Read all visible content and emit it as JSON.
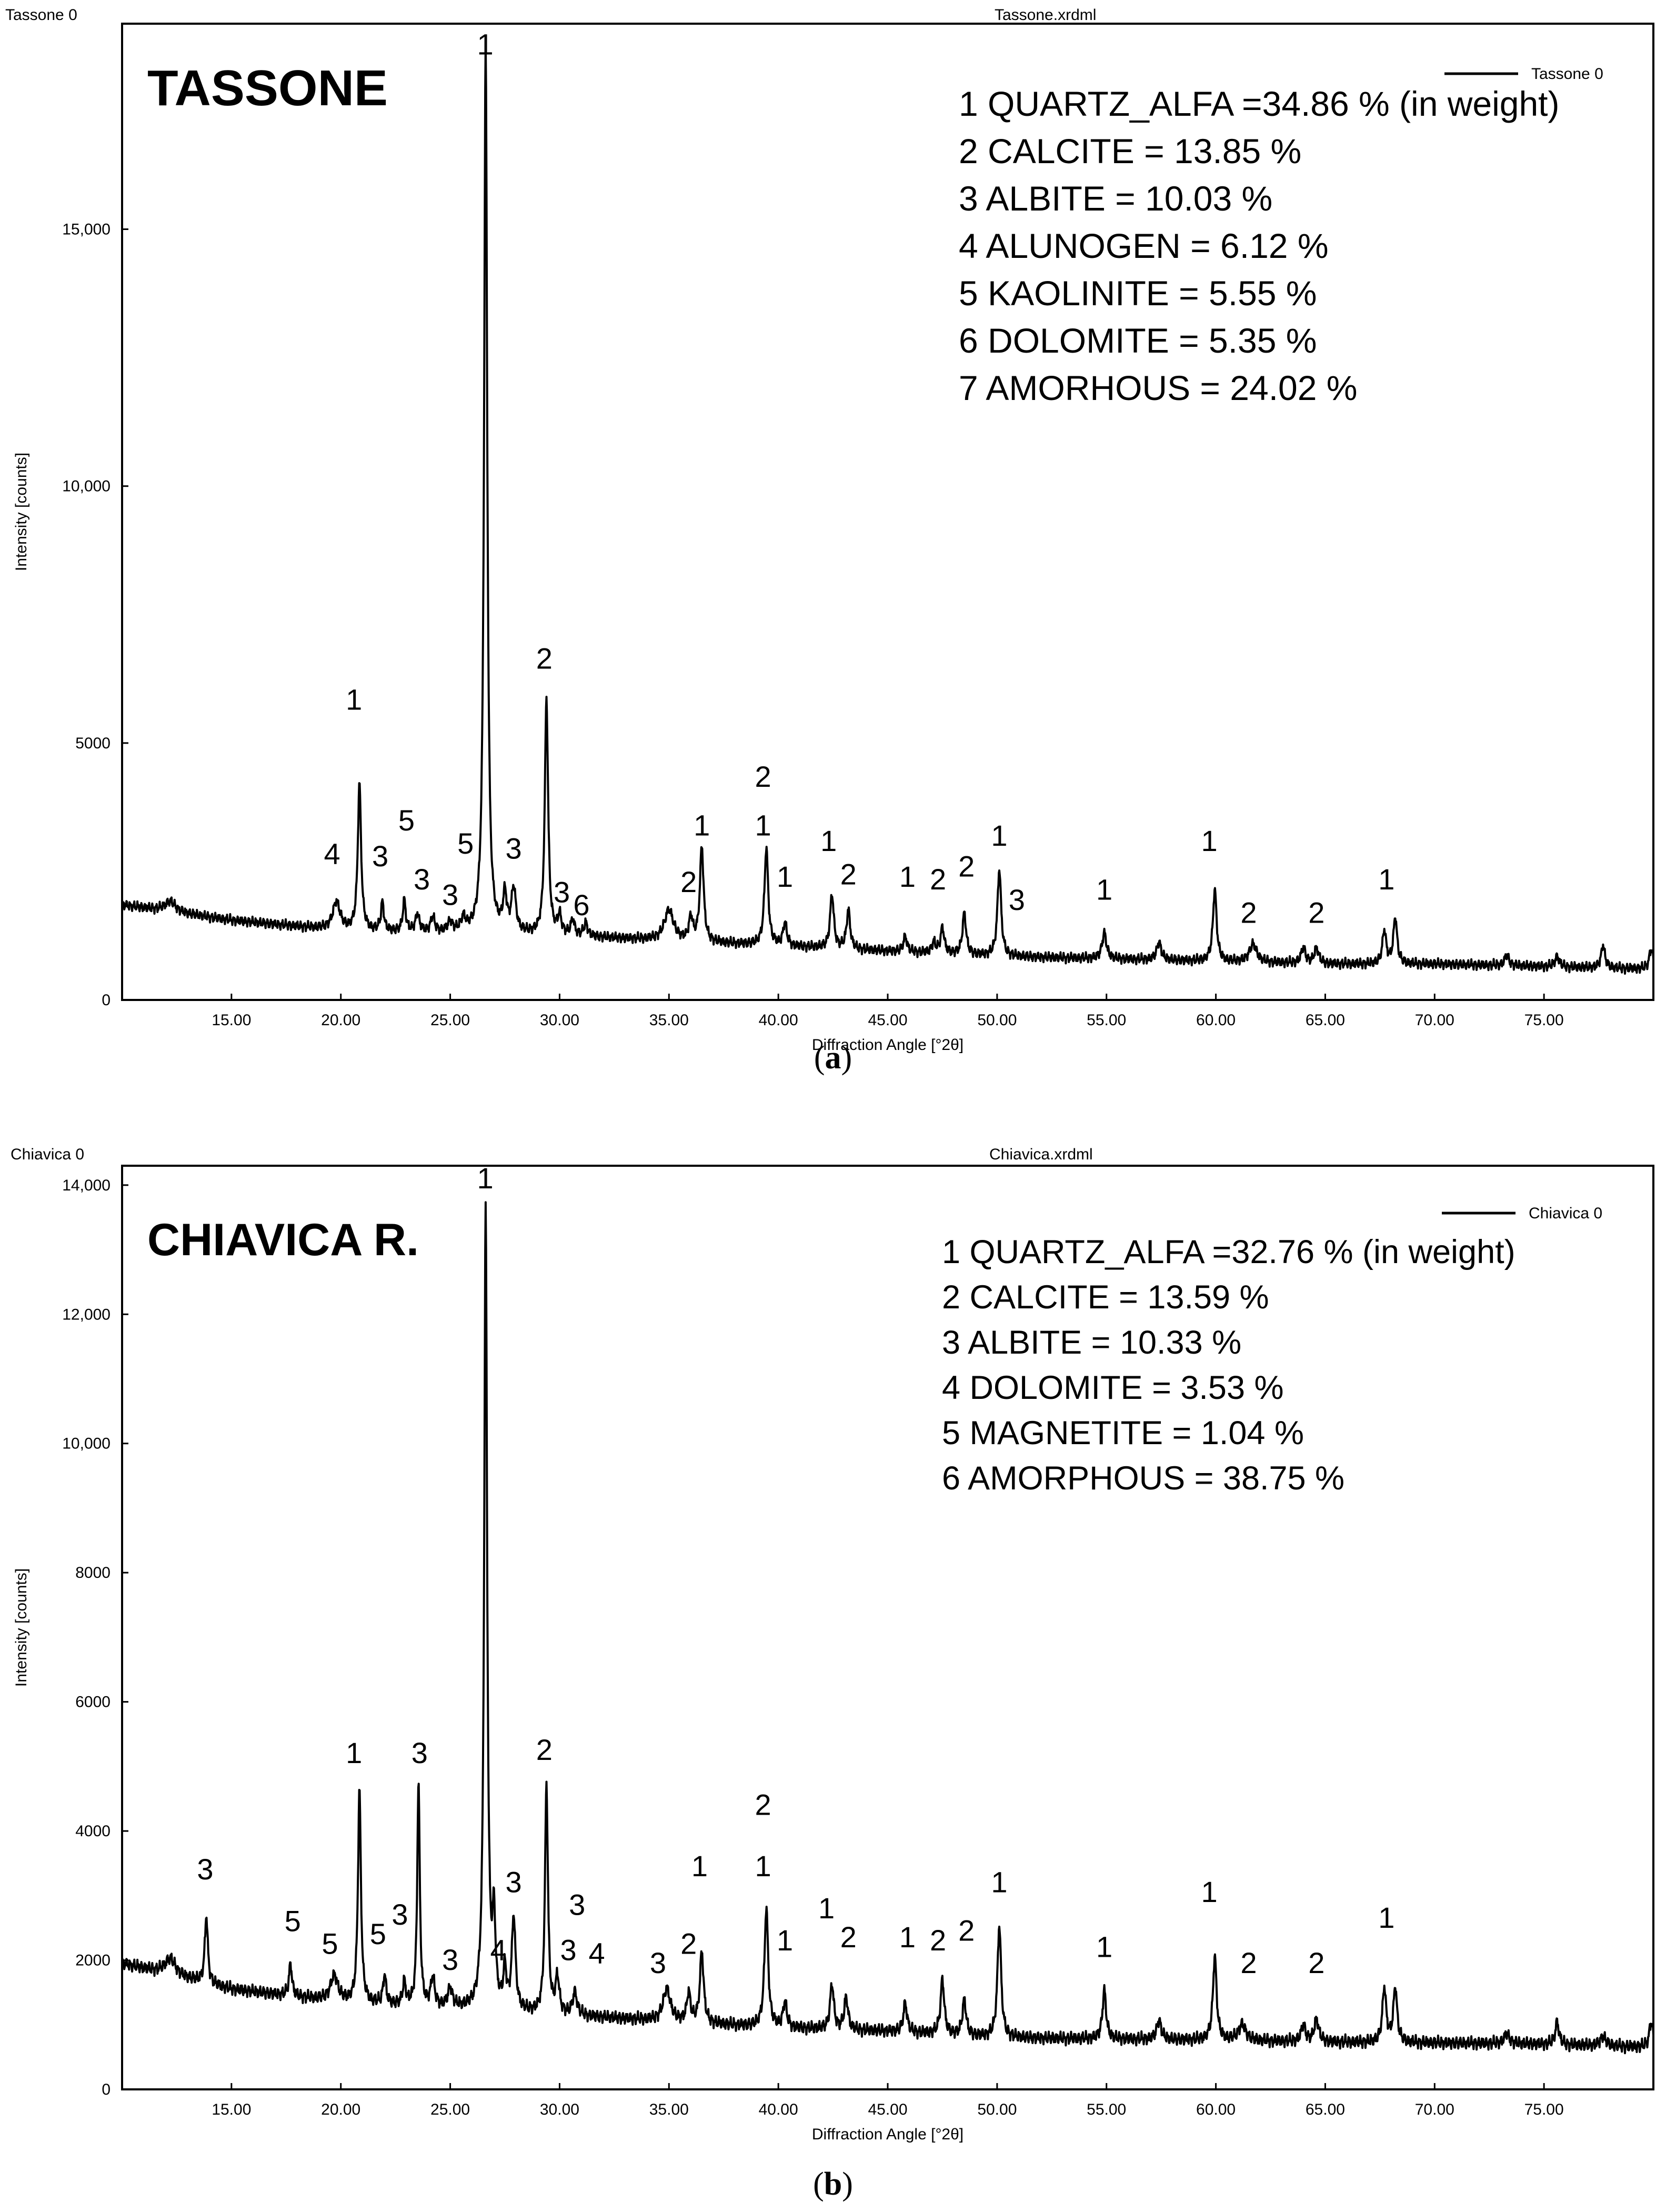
{
  "figure": {
    "caption_a_open": "(",
    "caption_a_letter": "a",
    "caption_a_close": ")",
    "caption_b_open": "(",
    "caption_b_letter": "b",
    "caption_b_close": ")"
  },
  "chart_data": [
    {
      "type": "line",
      "panel_id": "a",
      "sample_label": "Tassone 0",
      "file_name": "Tassone.xrdml",
      "title": "TASSONE",
      "legend": "Tassone 0",
      "xlabel": "Diffraction Angle [°2θ]",
      "ylabel": "Intensity [counts]",
      "xlim": [
        10,
        80
      ],
      "ylim": [
        0,
        19000
      ],
      "xticks": [
        15,
        20,
        25,
        30,
        35,
        40,
        45,
        50,
        55,
        60,
        65,
        70,
        75
      ],
      "xtick_labels": [
        "15.00",
        "20.00",
        "25.00",
        "30.00",
        "35.00",
        "40.00",
        "45.00",
        "50.00",
        "55.00",
        "60.00",
        "65.00",
        "70.00",
        "75.00"
      ],
      "yticks": [
        0,
        5000,
        10000,
        15000
      ],
      "ytick_labels": [
        "0",
        "5000",
        "10,000",
        "15,000"
      ],
      "composition": [
        "1 QUARTZ_ALFA =34.86 % (in weight)",
        "2 CALCITE = 13.85 %",
        "3 ALBITE = 10.03 %",
        "4 ALUNOGEN = 6.12 %",
        "5 KAOLINITE = 5.55 %",
        "6  DOLOMITE = 5.35 %",
        "7 AMORHOUS = 24.02 %"
      ],
      "baseline": [
        [
          10,
          1850
        ],
        [
          15,
          1550
        ],
        [
          20,
          1350
        ],
        [
          25,
          1300
        ],
        [
          30,
          1250
        ],
        [
          35,
          1150
        ],
        [
          40,
          1050
        ],
        [
          45,
          950
        ],
        [
          50,
          850
        ],
        [
          55,
          800
        ],
        [
          60,
          750
        ],
        [
          65,
          700
        ],
        [
          70,
          700
        ],
        [
          75,
          650
        ],
        [
          80,
          600
        ]
      ],
      "peaks": [
        [
          12.2,
          200,
          0.3
        ],
        [
          19.8,
          550,
          0.2
        ],
        [
          20.85,
          2850,
          0.09
        ],
        [
          21.9,
          550,
          0.08
        ],
        [
          22.9,
          600,
          0.08
        ],
        [
          23.5,
          350,
          0.1
        ],
        [
          24.2,
          300,
          0.1
        ],
        [
          25.0,
          200,
          0.12
        ],
        [
          25.6,
          250,
          0.12
        ],
        [
          26.62,
          17300,
          0.085
        ],
        [
          27.5,
          700,
          0.1
        ],
        [
          27.9,
          850,
          0.12
        ],
        [
          29.4,
          4600,
          0.09
        ],
        [
          30.0,
          350,
          0.1
        ],
        [
          30.6,
          300,
          0.1
        ],
        [
          31.2,
          250,
          0.1
        ],
        [
          35.0,
          600,
          0.25
        ],
        [
          36.0,
          450,
          0.1
        ],
        [
          36.5,
          1850,
          0.1
        ],
        [
          39.45,
          1900,
          0.1
        ],
        [
          40.3,
          450,
          0.1
        ],
        [
          42.45,
          1050,
          0.1
        ],
        [
          43.2,
          750,
          0.1
        ],
        [
          45.8,
          300,
          0.1
        ],
        [
          47.1,
          200,
          0.1
        ],
        [
          47.5,
          500,
          0.1
        ],
        [
          48.5,
          800,
          0.1
        ],
        [
          50.1,
          1700,
          0.1
        ],
        [
          54.9,
          500,
          0.12
        ],
        [
          57.4,
          350,
          0.12
        ],
        [
          59.95,
          1400,
          0.1
        ],
        [
          61.7,
          350,
          0.2
        ],
        [
          64.0,
          300,
          0.12
        ],
        [
          64.6,
          300,
          0.12
        ],
        [
          67.7,
          650,
          0.1
        ],
        [
          68.2,
          900,
          0.1
        ],
        [
          73.3,
          200,
          0.12
        ],
        [
          75.6,
          200,
          0.12
        ],
        [
          77.7,
          450,
          0.1
        ],
        [
          79.9,
          400,
          0.1
        ]
      ],
      "peak_labels": [
        {
          "x": 26.6,
          "y": 18400,
          "text": "1"
        },
        {
          "x": 20.6,
          "y": 5650,
          "text": "1"
        },
        {
          "x": 29.3,
          "y": 6450,
          "text": "2"
        },
        {
          "x": 19.6,
          "y": 2650,
          "text": "4"
        },
        {
          "x": 21.8,
          "y": 2600,
          "text": "3"
        },
        {
          "x": 23.0,
          "y": 3300,
          "text": "5"
        },
        {
          "x": 23.7,
          "y": 2150,
          "text": "3"
        },
        {
          "x": 25.0,
          "y": 1850,
          "text": "3"
        },
        {
          "x": 25.7,
          "y": 2850,
          "text": "5"
        },
        {
          "x": 27.9,
          "y": 2750,
          "text": "3"
        },
        {
          "x": 30.1,
          "y": 1900,
          "text": "3"
        },
        {
          "x": 31.0,
          "y": 1650,
          "text": "6"
        },
        {
          "x": 35.9,
          "y": 2100,
          "text": "2"
        },
        {
          "x": 36.5,
          "y": 3200,
          "text": "1"
        },
        {
          "x": 39.3,
          "y": 4150,
          "text": "2"
        },
        {
          "x": 39.3,
          "y": 3200,
          "text": "1"
        },
        {
          "x": 40.3,
          "y": 2200,
          "text": "1"
        },
        {
          "x": 42.3,
          "y": 2900,
          "text": "1"
        },
        {
          "x": 43.2,
          "y": 2250,
          "text": "2"
        },
        {
          "x": 45.9,
          "y": 2200,
          "text": "1"
        },
        {
          "x": 47.3,
          "y": 2150,
          "text": "2"
        },
        {
          "x": 48.6,
          "y": 2400,
          "text": "2"
        },
        {
          "x": 50.1,
          "y": 3000,
          "text": "1"
        },
        {
          "x": 50.9,
          "y": 1750,
          "text": "3"
        },
        {
          "x": 54.9,
          "y": 1950,
          "text": "1"
        },
        {
          "x": 59.7,
          "y": 2900,
          "text": "1"
        },
        {
          "x": 61.5,
          "y": 1500,
          "text": "2"
        },
        {
          "x": 64.6,
          "y": 1500,
          "text": "2"
        },
        {
          "x": 67.8,
          "y": 2150,
          "text": "1"
        }
      ]
    },
    {
      "type": "line",
      "panel_id": "b",
      "sample_label": "Chiavica 0",
      "file_name": "Chiavica.xrdml",
      "title": "CHIAVICA R.",
      "legend": "Chiavica 0",
      "xlabel": "Diffraction Angle [°2θ]",
      "ylabel": "Intensity [counts]",
      "xlim": [
        10,
        80
      ],
      "ylim": [
        0,
        14300
      ],
      "xticks": [
        15,
        20,
        25,
        30,
        35,
        40,
        45,
        50,
        55,
        60,
        65,
        70,
        75
      ],
      "xtick_labels": [
        "15.00",
        "20.00",
        "25.00",
        "30.00",
        "35.00",
        "40.00",
        "45.00",
        "50.00",
        "55.00",
        "60.00",
        "65.00",
        "70.00",
        "75.00"
      ],
      "yticks": [
        0,
        2000,
        4000,
        6000,
        8000,
        10000,
        12000,
        14000
      ],
      "ytick_labels": [
        "0",
        "2000",
        "4000",
        "6000",
        "8000",
        "10,000",
        "12,000",
        "14,000"
      ],
      "composition": [
        "1 QUARTZ_ALFA =32.76 % (in weight)",
        "2 CALCITE = 13.59 %",
        "3 ALBITE = 10.33 %",
        "4 DOLOMITE = 3.53 %",
        "5 MAGNETITE = 1.04 %",
        "6 AMORPHOUS = 38.75 %"
      ],
      "baseline": [
        [
          10,
          1950
        ],
        [
          15,
          1550
        ],
        [
          20,
          1350
        ],
        [
          25,
          1250
        ],
        [
          30,
          1150
        ],
        [
          35,
          1050
        ],
        [
          40,
          950
        ],
        [
          45,
          900
        ],
        [
          50,
          800
        ],
        [
          55,
          780
        ],
        [
          60,
          760
        ],
        [
          65,
          730
        ],
        [
          70,
          720
        ],
        [
          75,
          700
        ],
        [
          80,
          650
        ]
      ],
      "peaks": [
        [
          12.2,
          250,
          0.3
        ],
        [
          13.85,
          1050,
          0.08
        ],
        [
          17.7,
          500,
          0.08
        ],
        [
          19.7,
          400,
          0.2
        ],
        [
          20.85,
          3300,
          0.08
        ],
        [
          22.0,
          450,
          0.08
        ],
        [
          22.9,
          350,
          0.08
        ],
        [
          23.55,
          3450,
          0.07
        ],
        [
          24.2,
          450,
          0.1
        ],
        [
          25.0,
          300,
          0.12
        ],
        [
          26.62,
          12400,
          0.08
        ],
        [
          27.0,
          1300,
          0.08
        ],
        [
          27.5,
          600,
          0.08
        ],
        [
          27.9,
          1450,
          0.1
        ],
        [
          29.4,
          3550,
          0.08
        ],
        [
          29.9,
          550,
          0.1
        ],
        [
          30.7,
          350,
          0.12
        ],
        [
          34.9,
          500,
          0.2
        ],
        [
          35.9,
          450,
          0.1
        ],
        [
          36.5,
          1100,
          0.1
        ],
        [
          39.45,
          1850,
          0.1
        ],
        [
          40.3,
          400,
          0.1
        ],
        [
          42.45,
          700,
          0.1
        ],
        [
          43.1,
          500,
          0.1
        ],
        [
          45.8,
          450,
          0.1
        ],
        [
          47.5,
          850,
          0.1
        ],
        [
          48.5,
          550,
          0.1
        ],
        [
          50.1,
          1750,
          0.1
        ],
        [
          54.9,
          750,
          0.1
        ],
        [
          57.4,
          300,
          0.12
        ],
        [
          59.95,
          1300,
          0.1
        ],
        [
          61.2,
          250,
          0.2
        ],
        [
          64.0,
          250,
          0.12
        ],
        [
          64.6,
          350,
          0.12
        ],
        [
          67.7,
          850,
          0.1
        ],
        [
          68.2,
          850,
          0.1
        ],
        [
          73.3,
          150,
          0.15
        ],
        [
          75.6,
          350,
          0.1
        ],
        [
          77.7,
          150,
          0.15
        ],
        [
          79.9,
          400,
          0.1
        ]
      ],
      "peak_labels": [
        {
          "x": 26.6,
          "y": 13950,
          "text": "1"
        },
        {
          "x": 13.8,
          "y": 3250,
          "text": "3"
        },
        {
          "x": 17.8,
          "y": 2450,
          "text": "5"
        },
        {
          "x": 19.5,
          "y": 2100,
          "text": "5"
        },
        {
          "x": 20.6,
          "y": 5050,
          "text": "1"
        },
        {
          "x": 21.7,
          "y": 2250,
          "text": "5"
        },
        {
          "x": 22.7,
          "y": 2550,
          "text": "3"
        },
        {
          "x": 23.6,
          "y": 5050,
          "text": "3"
        },
        {
          "x": 25.0,
          "y": 1850,
          "text": "3"
        },
        {
          "x": 27.2,
          "y": 2000,
          "text": "4"
        },
        {
          "x": 27.9,
          "y": 3050,
          "text": "3"
        },
        {
          "x": 29.3,
          "y": 5100,
          "text": "2"
        },
        {
          "x": 30.4,
          "y": 2000,
          "text": "3"
        },
        {
          "x": 30.8,
          "y": 2700,
          "text": "3"
        },
        {
          "x": 31.7,
          "y": 1950,
          "text": "4"
        },
        {
          "x": 34.5,
          "y": 1800,
          "text": "3"
        },
        {
          "x": 35.9,
          "y": 2100,
          "text": "2"
        },
        {
          "x": 36.4,
          "y": 3300,
          "text": "1"
        },
        {
          "x": 39.3,
          "y": 4250,
          "text": "2"
        },
        {
          "x": 39.3,
          "y": 3300,
          "text": "1"
        },
        {
          "x": 40.3,
          "y": 2150,
          "text": "1"
        },
        {
          "x": 42.2,
          "y": 2650,
          "text": "1"
        },
        {
          "x": 43.2,
          "y": 2200,
          "text": "2"
        },
        {
          "x": 45.9,
          "y": 2200,
          "text": "1"
        },
        {
          "x": 47.3,
          "y": 2150,
          "text": "2"
        },
        {
          "x": 48.6,
          "y": 2300,
          "text": "2"
        },
        {
          "x": 50.1,
          "y": 3050,
          "text": "1"
        },
        {
          "x": 54.9,
          "y": 2050,
          "text": "1"
        },
        {
          "x": 59.7,
          "y": 2900,
          "text": "1"
        },
        {
          "x": 61.5,
          "y": 1800,
          "text": "2"
        },
        {
          "x": 64.6,
          "y": 1800,
          "text": "2"
        },
        {
          "x": 67.8,
          "y": 2500,
          "text": "1"
        }
      ]
    }
  ]
}
